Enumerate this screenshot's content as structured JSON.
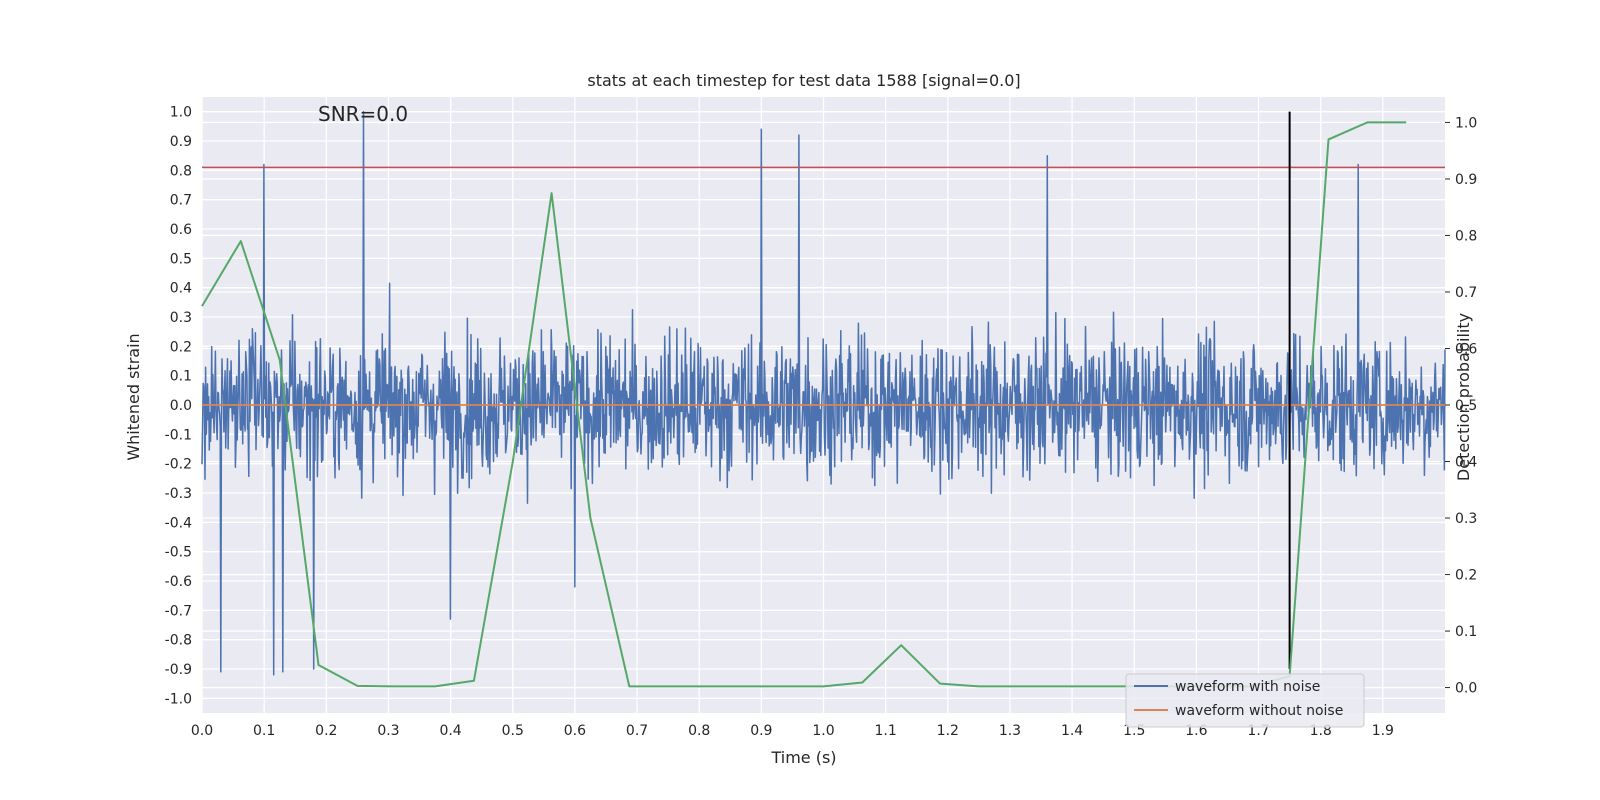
{
  "chart_data": {
    "type": "line",
    "title": "stats at each timestep for test data 1588 [signal=0.0]",
    "xlabel": "Time (s)",
    "ylabel": "Whitened strain",
    "y2label": "Detection probability",
    "annotation": "SNR=0.0",
    "xlim": [
      0.0,
      2.0
    ],
    "ylim": [
      -1.05,
      1.05
    ],
    "y2lim": [
      -0.045,
      1.045
    ],
    "xticks": [
      "0.0",
      "0.1",
      "0.2",
      "0.3",
      "0.4",
      "0.5",
      "0.6",
      "0.7",
      "0.8",
      "0.9",
      "1.0",
      "1.1",
      "1.2",
      "1.3",
      "1.4",
      "1.5",
      "1.6",
      "1.7",
      "1.8",
      "1.9"
    ],
    "yticks": [
      "1.0",
      "0.9",
      "0.8",
      "0.7",
      "0.6",
      "0.5",
      "0.4",
      "0.3",
      "0.2",
      "0.1",
      "0.0",
      "-0.1",
      "-0.2",
      "-0.3",
      "-0.4",
      "-0.5",
      "-0.6",
      "-0.7",
      "-0.8",
      "-0.9",
      "-1.0"
    ],
    "y2ticks": [
      "1.0",
      "0.9",
      "0.8",
      "0.7",
      "0.6",
      "0.5",
      "0.4",
      "0.3",
      "0.2",
      "0.1",
      "0.0"
    ],
    "grid": true,
    "legend_position": "lower-right",
    "series": [
      {
        "name": "waveform with noise",
        "color": "#4c72b0",
        "axis": "left",
        "x_range": [
          0.0,
          2.0
        ],
        "peaks_x": [
          0.1,
          0.26,
          0.9,
          0.96,
          1.36,
          1.86
        ],
        "peaks_y": [
          0.82,
          1.0,
          0.94,
          0.92,
          0.85,
          0.82
        ],
        "troughs_x": [
          0.03,
          0.115,
          0.13,
          0.18,
          0.4,
          0.6
        ],
        "troughs_y": [
          -0.91,
          -0.92,
          -0.91,
          -0.9,
          -0.73,
          -0.62
        ]
      },
      {
        "name": "waveform without noise",
        "color": "#dd8452",
        "axis": "left",
        "x": [
          0.0,
          2.0
        ],
        "y": [
          0.0,
          0.0
        ]
      },
      {
        "color": "#55a868",
        "axis": "right",
        "x": [
          0.0,
          0.0625,
          0.125,
          0.1875,
          0.25,
          0.3125,
          0.375,
          0.4375,
          0.5,
          0.5625,
          0.625,
          0.6875,
          0.75,
          0.8125,
          0.875,
          0.9375,
          1.0,
          1.0625,
          1.125,
          1.1875,
          1.25,
          1.3125,
          1.375,
          1.4375,
          1.5,
          1.5625,
          1.625,
          1.6875,
          1.75,
          1.8125,
          1.875,
          1.9375
        ],
        "y": [
          0.675,
          0.79,
          0.58,
          0.04,
          0.003,
          0.002,
          0.002,
          0.012,
          0.4,
          0.875,
          0.3,
          0.002,
          0.002,
          0.002,
          0.002,
          0.002,
          0.002,
          0.009,
          0.075,
          0.007,
          0.002,
          0.002,
          0.002,
          0.002,
          0.002,
          0.002,
          0.002,
          0.002,
          0.02,
          0.97,
          1.0,
          1.0
        ]
      }
    ],
    "hlines": [
      {
        "y": 0.81,
        "color": "#c44e52"
      }
    ],
    "vlines": [
      {
        "x": 1.75,
        "y0": -0.9,
        "y1": 1.0,
        "color": "#000000"
      }
    ]
  }
}
